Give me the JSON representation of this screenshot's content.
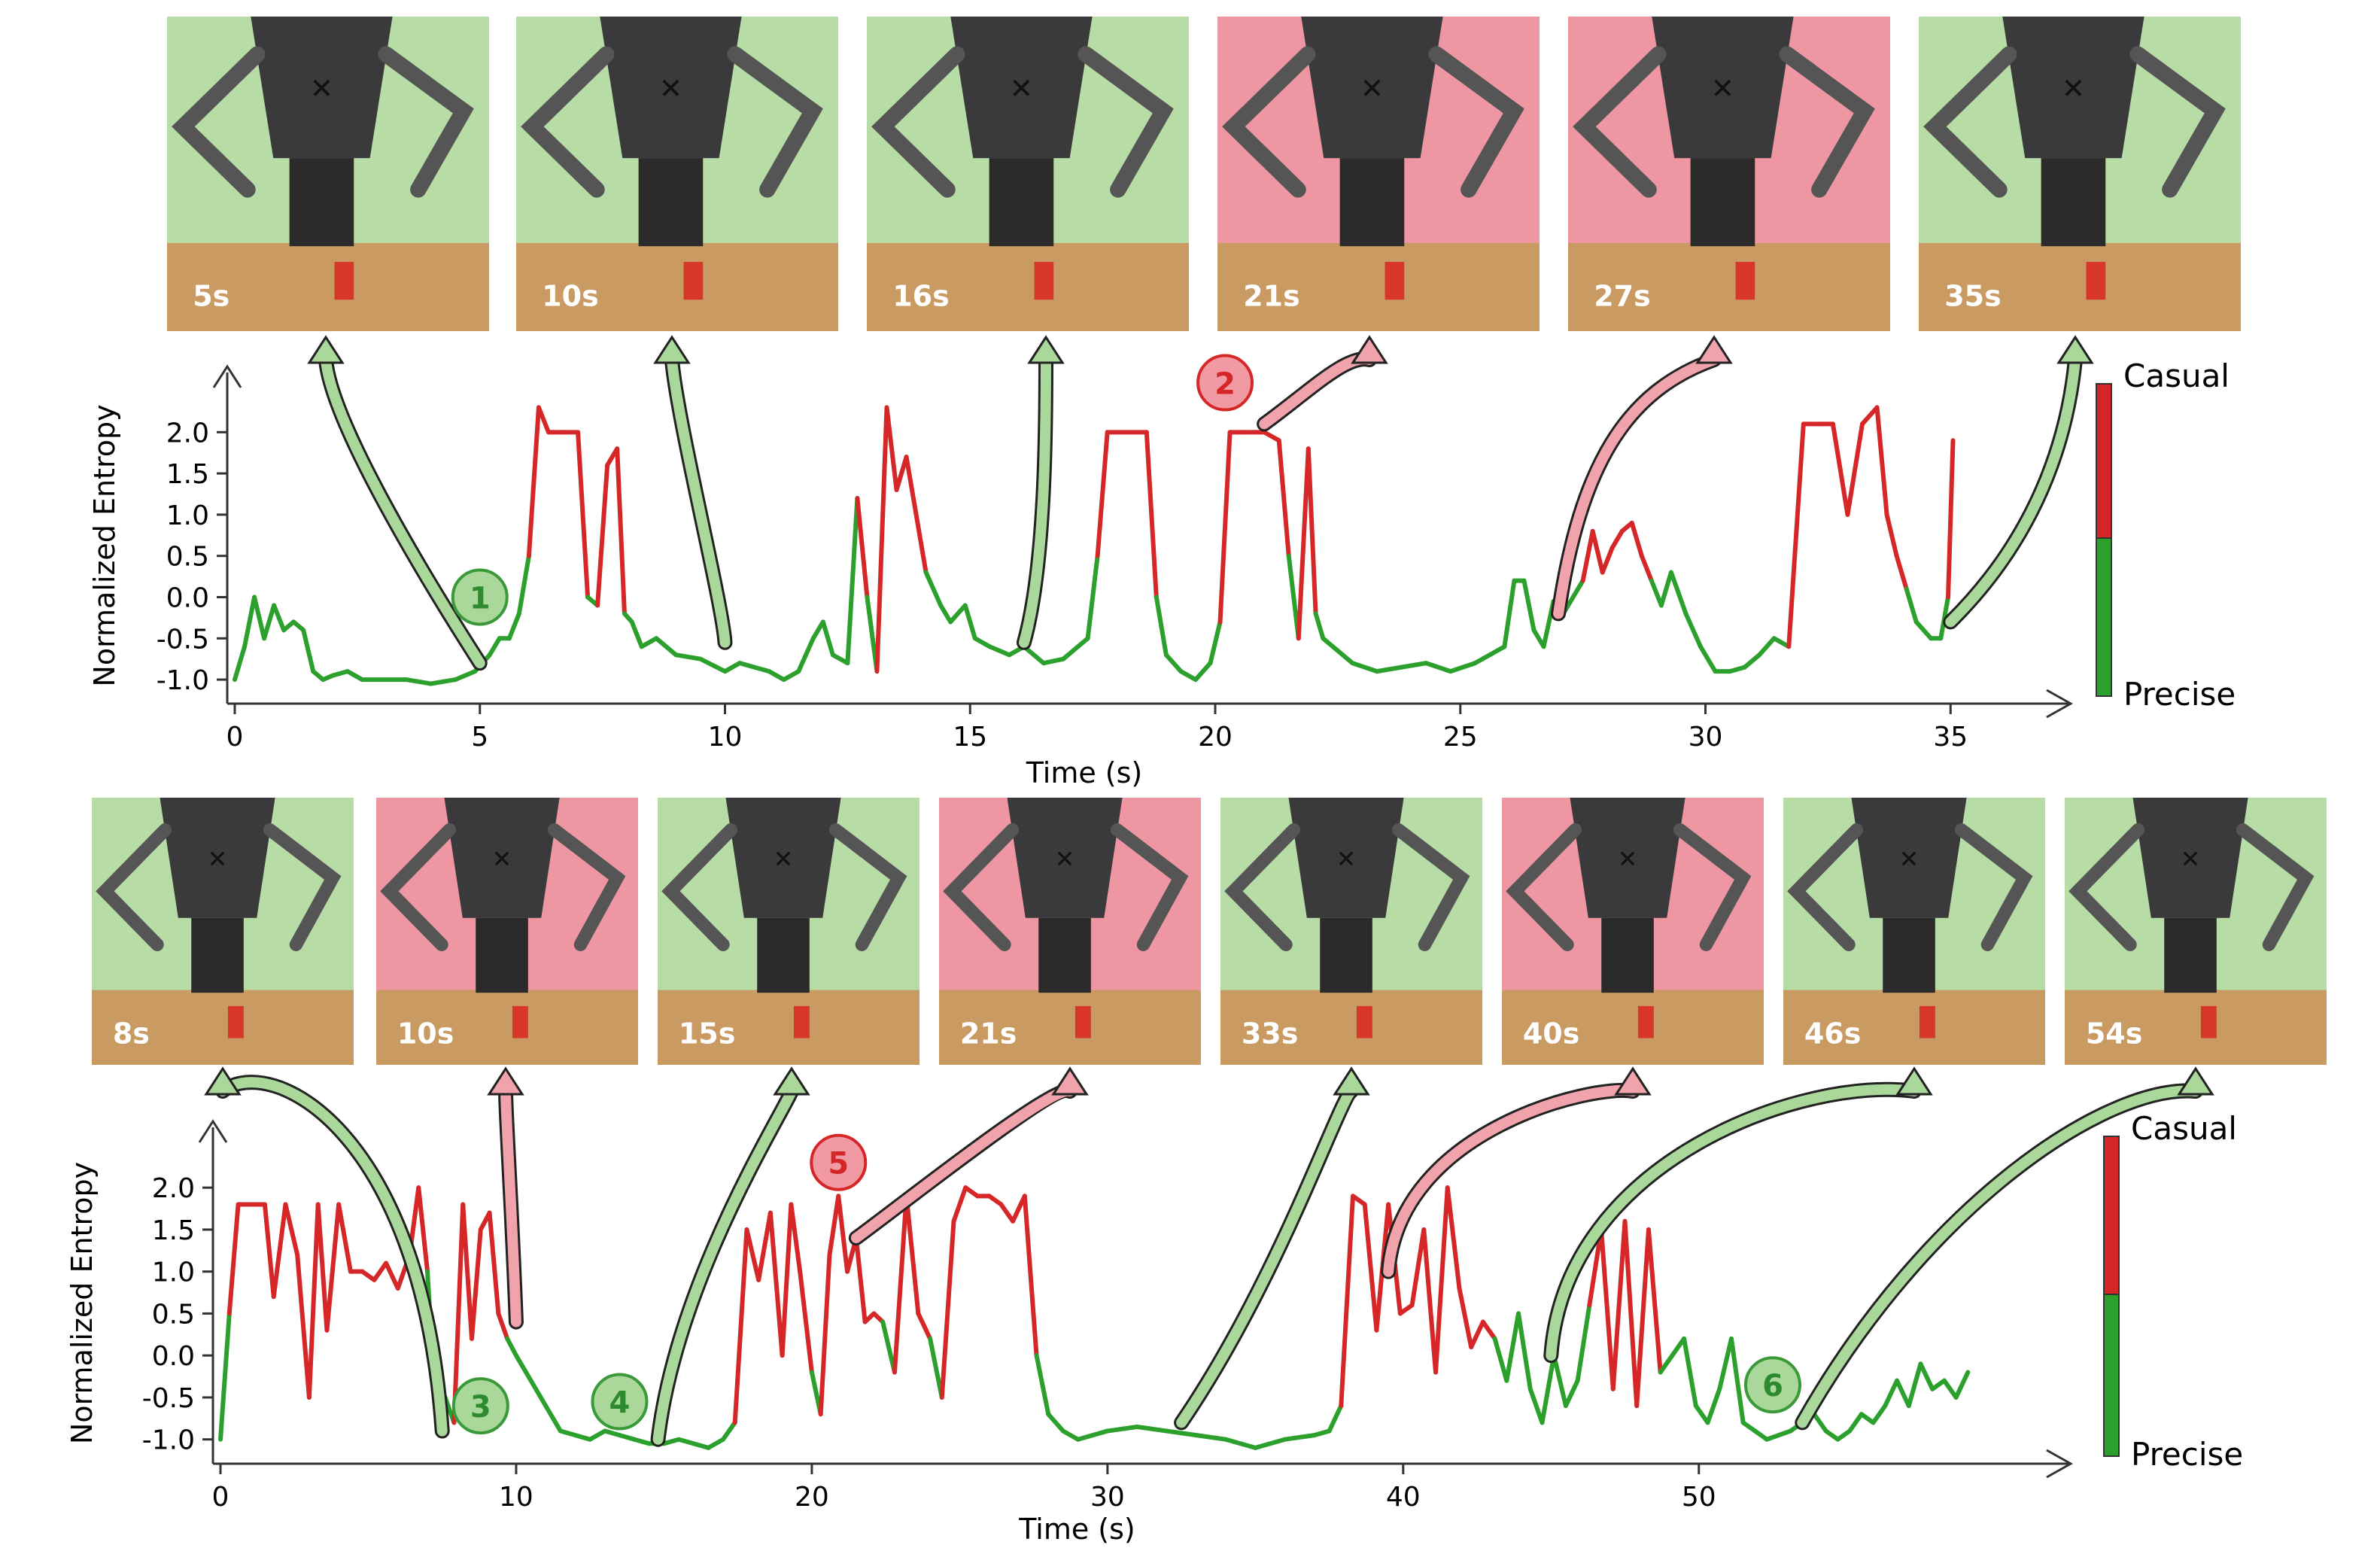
{
  "chart_data": [
    {
      "type": "line",
      "id": "top",
      "xlabel": "Time (s)",
      "ylabel": "Normalized Entropy",
      "xlim": [
        0,
        36.5
      ],
      "ylim": [
        -1.2,
        2.45
      ],
      "xticks": [
        0,
        5,
        10,
        15,
        20,
        25,
        30,
        35
      ],
      "yticks": [
        -1.0,
        -0.5,
        0.0,
        0.5,
        1.0,
        1.5,
        2.0
      ],
      "grid": false,
      "colorbar": {
        "top_label": "Casual",
        "bottom_label": "Precise",
        "casual_color": "#d62728",
        "precise_color": "#2ca02c"
      },
      "threshold": 0.2,
      "series": [
        {
          "x": [
            0,
            0.2,
            0.4,
            0.6,
            0.8,
            1.0,
            1.2,
            1.4,
            1.6,
            1.8,
            2.0,
            2.3,
            2.6,
            3.0,
            3.5,
            4.0,
            4.5,
            4.9,
            5.2,
            5.4,
            5.6,
            5.8,
            6.0,
            6.2,
            6.4,
            6.5,
            6.7,
            7.0,
            7.2,
            7.4,
            7.6,
            7.8,
            7.95,
            8.1,
            8.3,
            8.6,
            9.0,
            9.5,
            10.0,
            10.3,
            10.6,
            10.9,
            11.2,
            11.5,
            11.8,
            12.0,
            12.2,
            12.5,
            12.7,
            12.9,
            13.1,
            13.3,
            13.5,
            13.7,
            13.9,
            14.1,
            14.4,
            14.6,
            14.9,
            15.1,
            15.4,
            15.8,
            16.1,
            16.5,
            16.9,
            17.2,
            17.4,
            17.6,
            17.8,
            18.6,
            18.8,
            19.0,
            19.3,
            19.6,
            19.9,
            20.1,
            20.3,
            20.6,
            21.0,
            21.3,
            21.5,
            21.7,
            21.9,
            22.05,
            22.2,
            22.4,
            22.8,
            23.3,
            23.8,
            24.3,
            24.8,
            25.3,
            25.6,
            25.9,
            26.1,
            26.3,
            26.5,
            26.7,
            26.9,
            27.1,
            27.3,
            27.5,
            27.7,
            27.9,
            28.1,
            28.3,
            28.5,
            28.7,
            28.9,
            29.1,
            29.3,
            29.6,
            29.9,
            30.2,
            30.5,
            30.8,
            31.1,
            31.4,
            31.7,
            32.0,
            32.3,
            32.6,
            32.9,
            33.2,
            33.5,
            33.7,
            33.9,
            34.1,
            34.3,
            34.6,
            34.8,
            34.95,
            35.05
          ],
          "y": [
            -1.0,
            -0.6,
            0.0,
            -0.5,
            -0.1,
            -0.4,
            -0.3,
            -0.4,
            -0.9,
            -1.0,
            -0.95,
            -0.9,
            -1.0,
            -1.0,
            -1.0,
            -1.05,
            -1.0,
            -0.9,
            -0.7,
            -0.5,
            -0.5,
            -0.2,
            0.5,
            2.3,
            2.0,
            2.0,
            2.0,
            2.0,
            0.0,
            -0.1,
            1.6,
            1.8,
            -0.2,
            -0.3,
            -0.6,
            -0.5,
            -0.7,
            -0.75,
            -0.9,
            -0.8,
            -0.85,
            -0.9,
            -1.0,
            -0.9,
            -0.5,
            -0.3,
            -0.7,
            -0.8,
            1.2,
            0.0,
            -0.9,
            2.3,
            1.3,
            1.7,
            1.0,
            0.3,
            -0.1,
            -0.3,
            -0.1,
            -0.5,
            -0.6,
            -0.7,
            -0.6,
            -0.8,
            -0.75,
            -0.6,
            -0.5,
            0.5,
            2.0,
            2.0,
            0.0,
            -0.7,
            -0.9,
            -1.0,
            -0.8,
            -0.3,
            2.0,
            2.0,
            2.0,
            1.9,
            0.5,
            -0.5,
            1.8,
            -0.2,
            -0.5,
            -0.6,
            -0.8,
            -0.9,
            -0.85,
            -0.8,
            -0.9,
            -0.8,
            -0.7,
            -0.6,
            0.2,
            0.2,
            -0.4,
            -0.6,
            -0.05,
            -0.2,
            0.0,
            0.2,
            0.8,
            0.3,
            0.6,
            0.8,
            0.9,
            0.5,
            0.2,
            -0.1,
            0.3,
            -0.2,
            -0.6,
            -0.9,
            -0.9,
            -0.85,
            -0.7,
            -0.5,
            -0.6,
            2.1,
            2.1,
            2.1,
            1.0,
            2.1,
            2.3,
            1.0,
            0.5,
            0.1,
            -0.3,
            -0.5,
            -0.5,
            0.0,
            1.9
          ]
        }
      ],
      "markers": [
        {
          "label": "1",
          "state": "precise"
        },
        {
          "label": "2",
          "state": "casual"
        }
      ],
      "frames": [
        {
          "label": "5s",
          "bg": "#b8dca6",
          "state": "precise"
        },
        {
          "label": "10s",
          "bg": "#b8dca6",
          "state": "precise"
        },
        {
          "label": "16s",
          "bg": "#b8dca6",
          "state": "precise"
        },
        {
          "label": "21s",
          "bg": "#ee97a2",
          "state": "casual"
        },
        {
          "label": "27s",
          "bg": "#ee97a2",
          "state": "casual"
        },
        {
          "label": "35s",
          "bg": "#b8dca6",
          "state": "precise"
        }
      ]
    },
    {
      "type": "line",
      "id": "bottom",
      "xlabel": "Time (s)",
      "ylabel": "Normalized Entropy",
      "xlim": [
        0,
        61
      ],
      "ylim": [
        -1.2,
        2.45
      ],
      "xticks": [
        0,
        10,
        20,
        30,
        40,
        50
      ],
      "yticks": [
        -1.0,
        -0.5,
        0.0,
        0.5,
        1.0,
        1.5,
        2.0
      ],
      "grid": false,
      "colorbar": {
        "top_label": "Casual",
        "bottom_label": "Precise",
        "casual_color": "#d62728",
        "precise_color": "#2ca02c"
      },
      "threshold": 0.2,
      "series": [
        {
          "x": [
            0,
            0.3,
            0.6,
            1.0,
            1.5,
            1.8,
            2.2,
            2.6,
            3.0,
            3.3,
            3.6,
            4.0,
            4.4,
            4.8,
            5.2,
            5.6,
            6.0,
            6.4,
            6.7,
            7.0,
            7.3,
            7.6,
            7.9,
            8.2,
            8.5,
            8.8,
            9.1,
            9.4,
            9.7,
            10.0,
            10.5,
            11.0,
            11.5,
            12.0,
            12.5,
            13.0,
            13.5,
            14.0,
            14.5,
            15.0,
            15.5,
            16.0,
            16.5,
            17.0,
            17.4,
            17.8,
            18.2,
            18.6,
            19.0,
            19.3,
            19.6,
            20.0,
            20.3,
            20.6,
            20.9,
            21.2,
            21.5,
            21.8,
            22.1,
            22.4,
            22.8,
            23.2,
            23.6,
            24.0,
            24.4,
            24.8,
            25.2,
            25.6,
            26.0,
            26.4,
            26.8,
            27.2,
            27.6,
            28.0,
            28.5,
            29.0,
            30.0,
            31.0,
            32.0,
            33.0,
            34.0,
            35.0,
            36.0,
            37.0,
            37.5,
            37.9,
            38.3,
            38.7,
            39.1,
            39.5,
            39.9,
            40.3,
            40.7,
            41.1,
            41.5,
            41.9,
            42.3,
            42.7,
            43.1,
            43.5,
            43.9,
            44.3,
            44.7,
            45.1,
            45.5,
            45.9,
            46.3,
            46.7,
            47.1,
            47.5,
            47.9,
            48.3,
            48.7,
            49.1,
            49.5,
            49.9,
            50.3,
            50.7,
            51.1,
            51.5,
            51.9,
            52.3,
            52.7,
            53.1,
            53.5,
            53.9,
            54.3,
            54.7,
            55.1,
            55.5,
            55.9,
            56.3,
            56.7,
            57.1,
            57.5,
            57.9,
            58.3,
            58.7,
            59.1
          ],
          "y": [
            -1.0,
            0.5,
            1.8,
            1.8,
            1.8,
            0.7,
            1.8,
            1.2,
            -0.5,
            1.8,
            0.3,
            1.8,
            1.0,
            1.0,
            0.9,
            1.1,
            0.8,
            1.2,
            2.0,
            1.0,
            -0.8,
            -0.5,
            -0.8,
            1.8,
            0.2,
            1.5,
            1.7,
            0.5,
            0.2,
            0.0,
            -0.3,
            -0.6,
            -0.9,
            -0.95,
            -1.0,
            -0.9,
            -0.95,
            -1.0,
            -1.05,
            -1.05,
            -1.0,
            -1.05,
            -1.1,
            -1.0,
            -0.8,
            1.5,
            0.9,
            1.7,
            0.0,
            1.8,
            1.0,
            -0.2,
            -0.7,
            1.2,
            1.9,
            1.0,
            1.4,
            0.4,
            0.5,
            0.4,
            -0.2,
            1.9,
            0.5,
            0.2,
            -0.5,
            1.6,
            2.0,
            1.9,
            1.9,
            1.8,
            1.6,
            1.9,
            0.0,
            -0.7,
            -0.9,
            -1.0,
            -0.9,
            -0.85,
            -0.9,
            -0.95,
            -1.0,
            -1.1,
            -1.0,
            -0.95,
            -0.9,
            -0.6,
            1.9,
            1.8,
            0.3,
            1.8,
            0.5,
            0.6,
            1.5,
            -0.2,
            2.0,
            0.8,
            0.1,
            0.4,
            0.2,
            -0.3,
            0.5,
            -0.4,
            -0.8,
            0.0,
            -0.6,
            -0.3,
            0.6,
            1.5,
            -0.4,
            1.6,
            -0.6,
            1.5,
            -0.2,
            0.0,
            0.2,
            -0.6,
            -0.8,
            -0.4,
            0.2,
            -0.8,
            -0.9,
            -1.0,
            -0.95,
            -0.9,
            -0.8,
            -0.7,
            -0.9,
            -1.0,
            -0.9,
            -0.7,
            -0.8,
            -0.6,
            -0.3,
            -0.6,
            -0.1,
            -0.4,
            -0.3,
            -0.5,
            -0.2
          ]
        }
      ],
      "markers": [
        {
          "label": "3",
          "state": "precise"
        },
        {
          "label": "4",
          "state": "precise"
        },
        {
          "label": "5",
          "state": "casual"
        },
        {
          "label": "6",
          "state": "precise"
        }
      ],
      "frames": [
        {
          "label": "8s",
          "bg": "#b8dca6",
          "state": "precise"
        },
        {
          "label": "10s",
          "bg": "#ee97a2",
          "state": "casual"
        },
        {
          "label": "15s",
          "bg": "#b8dca6",
          "state": "precise"
        },
        {
          "label": "21s",
          "bg": "#ee97a2",
          "state": "casual"
        },
        {
          "label": "33s",
          "bg": "#b8dca6",
          "state": "precise"
        },
        {
          "label": "40s",
          "bg": "#ee97a2",
          "state": "casual"
        },
        {
          "label": "46s",
          "bg": "#b8dca6",
          "state": "precise"
        },
        {
          "label": "54s",
          "bg": "#b8dca6",
          "state": "precise"
        }
      ]
    }
  ]
}
